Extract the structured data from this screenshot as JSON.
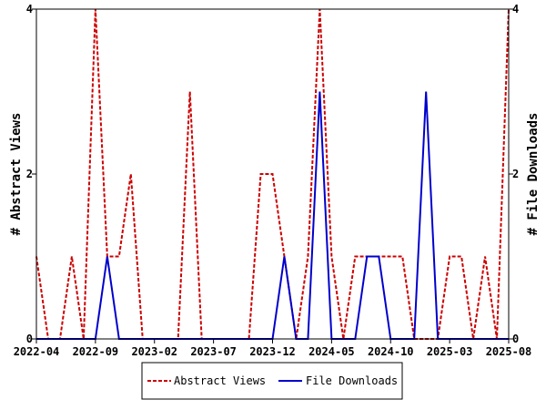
{
  "chart_data": {
    "type": "line",
    "title": "",
    "x_ticks": [
      "2022-04",
      "2022-09",
      "2023-02",
      "2023-07",
      "2023-12",
      "2024-05",
      "2024-10",
      "2025-03",
      "2025-08"
    ],
    "ylabel_left": "# Abstract Views",
    "ylabel_right": "# File Downloads",
    "ylim": [
      0,
      4
    ],
    "y_ticks": [
      "0",
      "2",
      "4"
    ],
    "grid": false,
    "legend_position": "bottom",
    "months": [
      "2022-04",
      "2022-05",
      "2022-06",
      "2022-07",
      "2022-08",
      "2022-09",
      "2022-10",
      "2022-11",
      "2022-12",
      "2023-01",
      "2023-02",
      "2023-03",
      "2023-04",
      "2023-05",
      "2023-06",
      "2023-07",
      "2023-08",
      "2023-09",
      "2023-10",
      "2023-11",
      "2023-12",
      "2024-01",
      "2024-02",
      "2024-03",
      "2024-04",
      "2024-05",
      "2024-06",
      "2024-07",
      "2024-08",
      "2024-09",
      "2024-10",
      "2024-11",
      "2024-12",
      "2025-01",
      "2025-02",
      "2025-03",
      "2025-04",
      "2025-05",
      "2025-06",
      "2025-07",
      "2025-08"
    ],
    "series": [
      {
        "name": "Abstract Views",
        "color": "#cc0000",
        "dash": "dashed",
        "axis": "left",
        "values": [
          1,
          0,
          0,
          1,
          0,
          4,
          1,
          1,
          2,
          0,
          0,
          0,
          0,
          3,
          0,
          0,
          0,
          0,
          0,
          2,
          2,
          1,
          0,
          1,
          4,
          1,
          0,
          1,
          1,
          1,
          1,
          1,
          0,
          0,
          0,
          1,
          1,
          0,
          1,
          0,
          4
        ]
      },
      {
        "name": "File Downloads",
        "color": "#0000cc",
        "dash": "solid",
        "axis": "right",
        "values": [
          0,
          0,
          0,
          0,
          0,
          0,
          1,
          0,
          0,
          0,
          0,
          0,
          0,
          0,
          0,
          0,
          0,
          0,
          0,
          0,
          0,
          1,
          0,
          0,
          3,
          0,
          0,
          0,
          1,
          1,
          0,
          0,
          0,
          3,
          0,
          0,
          0,
          0,
          0,
          0,
          0
        ]
      }
    ]
  }
}
